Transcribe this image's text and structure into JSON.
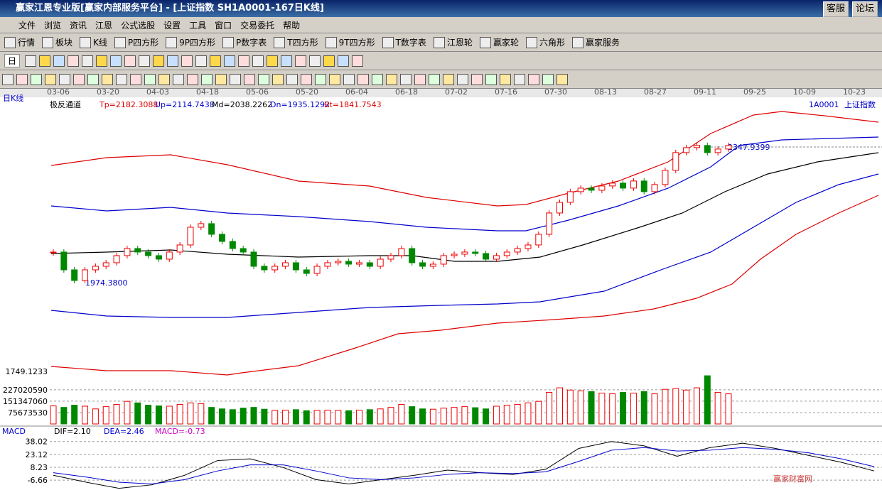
{
  "window": {
    "title": "赢家江恩专业版[赢家内部服务平台] - [上证指数   SH1A0001-167日K线]",
    "buttons": [
      "客服",
      "论坛"
    ]
  },
  "menu": [
    "文件",
    "浏览",
    "资讯",
    "江恩",
    "公式选股",
    "设置",
    "工具",
    "窗口",
    "交易委托",
    "帮助"
  ],
  "toolbar": [
    "行情",
    "板块",
    "K线",
    "P四方形",
    "9P四方形",
    "P数字表",
    "T四方形",
    "9T四方形",
    "T数字表",
    "江恩轮",
    "赢家轮",
    "六角形",
    "赢家服务"
  ],
  "period": "日",
  "dates": [
    "03-06",
    "03-20",
    "04-03",
    "04-18",
    "05-06",
    "05-20",
    "06-04",
    "06-18",
    "07-02",
    "07-16",
    "07-30",
    "08-13",
    "08-27",
    "09-11",
    "09-25",
    "10-09",
    "10-23"
  ],
  "chart": {
    "period_label": "日K线",
    "indicator": "极反通道",
    "params": [
      "Tp=2182.3088",
      "Up=2114.7438",
      "Md=2038.2262",
      "Dn=1935.1292",
      "Bt=1841.7543"
    ],
    "code": "1A0001",
    "name": "上证指数",
    "low_label": "1974.3800",
    "high_label": "2347.9399",
    "bottom_label": "1749.1233",
    "closes": [
      2058.6,
      2009.6,
      1980.3,
      2009.6,
      2019.4,
      2029.2,
      2048.8,
      2068.3,
      2058.6,
      2048.8,
      2039.0,
      2058.6,
      2078.1,
      2127.0,
      2136.8,
      2107.5,
      2087.9,
      2068.3,
      2058.6,
      2019.4,
      2009.6,
      2019.4,
      2029.2,
      2009.6,
      1999.8,
      2019.4,
      2029.2,
      2033.1,
      2025.3,
      2029.2,
      2019.4,
      2039.0,
      2048.8,
      2068.3,
      2029.2,
      2019.4,
      2025.3,
      2048.8,
      2052.7,
      2058.6,
      2054.6,
      2039.0,
      2048.8,
      2058.6,
      2068.3,
      2078.1,
      2107.5,
      2166.2,
      2195.5,
      2224.9,
      2234.7,
      2228.8,
      2240.6,
      2248.4,
      2234.7,
      2254.3,
      2224.9,
      2244.5,
      2283.6,
      2332.5,
      2346.2,
      2352.1,
      2332.5,
      2342.3,
      2352.1
    ]
  },
  "volume": {
    "ylim": [
      0,
      330000000
    ],
    "yticks": [
      227020590,
      151347060,
      75673530
    ],
    "values": [
      120000000,
      110000000,
      125000000,
      118000000,
      100000000,
      115000000,
      130000000,
      150000000,
      140000000,
      125000000,
      120000000,
      118000000,
      130000000,
      140000000,
      135000000,
      110000000,
      100000000,
      95000000,
      105000000,
      110000000,
      98000000,
      90000000,
      92000000,
      95000000,
      88000000,
      90000000,
      92000000,
      90000000,
      88000000,
      92000000,
      95000000,
      100000000,
      110000000,
      130000000,
      115000000,
      100000000,
      98000000,
      105000000,
      110000000,
      115000000,
      108000000,
      100000000,
      118000000,
      125000000,
      130000000,
      140000000,
      150000000,
      210000000,
      240000000,
      225000000,
      220000000,
      215000000,
      205000000,
      200000000,
      210000000,
      205000000,
      215000000,
      200000000,
      230000000,
      235000000,
      225000000,
      240000000,
      320000000,
      210000000,
      200000000
    ]
  },
  "macd": {
    "title": "MACD",
    "labels": [
      "DIF=2.10",
      "DEA=2.46",
      "MACD=-0.73"
    ],
    "ylim": [
      -18,
      46
    ],
    "yticks": [
      38.02,
      23.12,
      8.23,
      -6.66
    ],
    "dif": [
      -1,
      -9,
      -16,
      -12,
      -1,
      16,
      18,
      8,
      -6,
      -11,
      -6,
      -1,
      5,
      2,
      0,
      6,
      30,
      38,
      33,
      21,
      31,
      36,
      30,
      22,
      14,
      4
    ],
    "dea": [
      2,
      -3,
      -9,
      -11,
      -6,
      4,
      11,
      11,
      4,
      -4,
      -6,
      -4,
      0,
      2,
      1,
      3,
      15,
      28,
      31,
      27,
      28,
      31,
      29,
      25,
      18,
      9
    ]
  },
  "watermark": "赢家财富网"
}
